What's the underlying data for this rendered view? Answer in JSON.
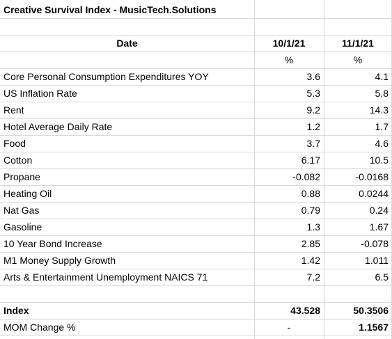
{
  "title": "Creative Survival Index - MusicTech.Solutions",
  "header": {
    "label": "Date",
    "dates": [
      "10/1/21",
      "11/1/21"
    ],
    "units": [
      "%",
      "%"
    ]
  },
  "rows": [
    {
      "label": "Core Personal Consumption Expenditures YOY",
      "values": [
        3.6,
        4.1
      ]
    },
    {
      "label": "US Inflation Rate",
      "values": [
        5.3,
        5.8
      ]
    },
    {
      "label": "Rent",
      "values": [
        9.2,
        14.3
      ]
    },
    {
      "label": "Hotel Average Daily Rate",
      "values": [
        1.2,
        1.7
      ]
    },
    {
      "label": "Food",
      "values": [
        3.7,
        4.6
      ]
    },
    {
      "label": "Cotton",
      "values": [
        6.17,
        10.5
      ]
    },
    {
      "label": "Propane",
      "values": [
        -0.082,
        -0.0168
      ]
    },
    {
      "label": "Heating Oil",
      "values": [
        0.88,
        0.0244
      ]
    },
    {
      "label": "Nat Gas",
      "values": [
        0.79,
        0.24
      ]
    },
    {
      "label": "Gasoline",
      "values": [
        1.3,
        1.67
      ]
    },
    {
      "label": "10 Year Bond Increase",
      "values": [
        2.85,
        -0.078
      ]
    },
    {
      "label": "M1 Money Supply Growth",
      "values": [
        1.42,
        1.011
      ]
    },
    {
      "label": "Arts & Entertainment Unemployment NAICS 71",
      "values": [
        7.2,
        6.5
      ]
    }
  ],
  "summary": [
    {
      "label": "Index",
      "values": [
        43.528,
        50.3506
      ]
    },
    {
      "label": "MOM Change %",
      "values": [
        "-",
        1.1567
      ]
    }
  ]
}
